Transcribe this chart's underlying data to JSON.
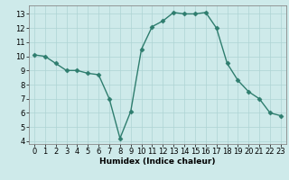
{
  "x": [
    0,
    1,
    2,
    3,
    4,
    5,
    6,
    7,
    8,
    9,
    10,
    11,
    12,
    13,
    14,
    15,
    16,
    17,
    18,
    19,
    20,
    21,
    22,
    23
  ],
  "y": [
    10.1,
    10.0,
    9.5,
    9.0,
    9.0,
    8.8,
    8.7,
    7.0,
    4.2,
    6.1,
    10.5,
    12.1,
    12.5,
    13.1,
    13.0,
    13.0,
    13.1,
    12.0,
    9.5,
    8.3,
    7.5,
    7.0,
    6.0,
    5.8
  ],
  "line_color": "#2e7d6e",
  "marker": "D",
  "marker_size": 2.5,
  "bg_color": "#ceeaea",
  "grid_color": "#aed4d4",
  "xlabel": "Humidex (Indice chaleur)",
  "xlim": [
    -0.5,
    23.5
  ],
  "ylim": [
    3.8,
    13.6
  ],
  "yticks": [
    4,
    5,
    6,
    7,
    8,
    9,
    10,
    11,
    12,
    13
  ],
  "xticks": [
    0,
    1,
    2,
    3,
    4,
    5,
    6,
    7,
    8,
    9,
    10,
    11,
    12,
    13,
    14,
    15,
    16,
    17,
    18,
    19,
    20,
    21,
    22,
    23
  ],
  "xlabel_fontsize": 6.5,
  "tick_fontsize": 6.0,
  "line_width": 1.0
}
